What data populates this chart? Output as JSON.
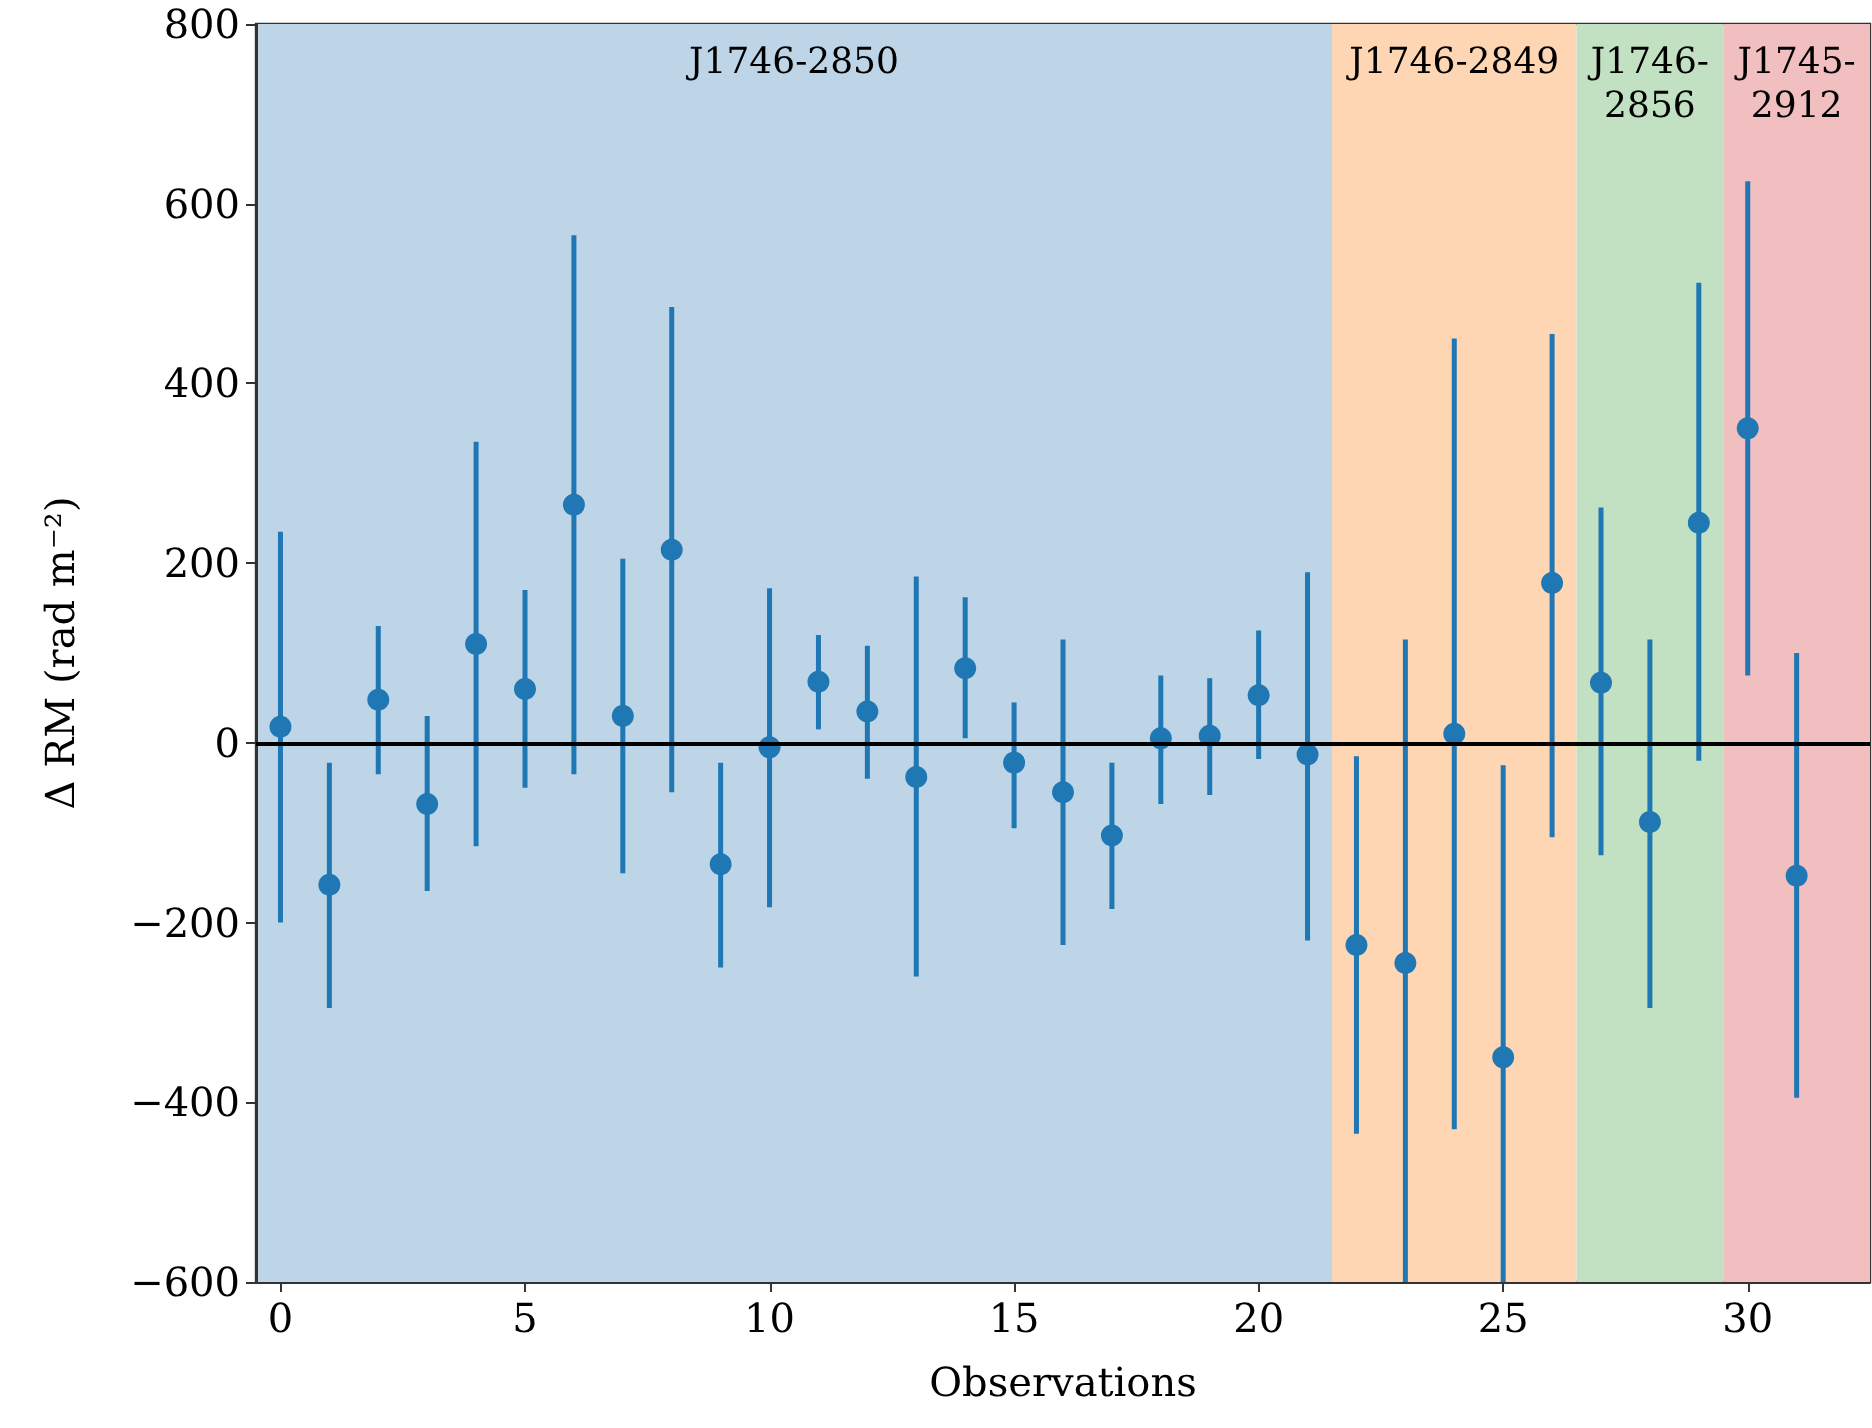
{
  "chart_data": {
    "type": "scatter",
    "xlabel": "Observations",
    "ylabel": "Δ RM (rad m⁻²)",
    "x": [
      0,
      1,
      2,
      3,
      4,
      5,
      6,
      7,
      8,
      9,
      10,
      11,
      12,
      13,
      14,
      15,
      16,
      17,
      18,
      19,
      20,
      21,
      22,
      23,
      24,
      25,
      26,
      27,
      28,
      29,
      30,
      31
    ],
    "series": [
      {
        "color": "#1f77b4",
        "values": [
          18,
          -158,
          48,
          -68,
          110,
          60,
          265,
          30,
          215,
          -135,
          -5,
          68,
          35,
          -38,
          83,
          -22,
          -55,
          -103,
          5,
          8,
          53,
          -13,
          -225,
          -245,
          10,
          -350,
          178,
          67,
          -88,
          245,
          350,
          -148
        ],
        "errors": [
          [
            -200,
            235
          ],
          [
            -295,
            -22
          ],
          [
            -35,
            130
          ],
          [
            -165,
            30
          ],
          [
            -115,
            335
          ],
          [
            -50,
            170
          ],
          [
            -35,
            565
          ],
          [
            -145,
            205
          ],
          [
            -55,
            485
          ],
          [
            -250,
            -22
          ],
          [
            -183,
            172
          ],
          [
            15,
            120
          ],
          [
            -40,
            108
          ],
          [
            -260,
            185
          ],
          [
            5,
            162
          ],
          [
            -95,
            45
          ],
          [
            -225,
            115
          ],
          [
            -185,
            -22
          ],
          [
            -68,
            75
          ],
          [
            -58,
            72
          ],
          [
            -18,
            125
          ],
          [
            -220,
            190
          ],
          [
            -435,
            -15
          ],
          [
            -600,
            115
          ],
          [
            -430,
            450
          ],
          [
            -600,
            -25
          ],
          [
            -105,
            455
          ],
          [
            -125,
            262
          ],
          [
            -295,
            115
          ],
          [
            -20,
            512
          ],
          [
            75,
            625
          ],
          [
            -395,
            100
          ]
        ]
      }
    ],
    "xlim": [
      -0.5,
      32.5
    ],
    "xticks": [
      0,
      5,
      10,
      15,
      20,
      25,
      30
    ],
    "ylim": [
      -600,
      800
    ],
    "yticks": [
      -600,
      -400,
      -200,
      0,
      200,
      400,
      600,
      800
    ],
    "bands": [
      {
        "axis": "x",
        "from": -0.5,
        "to": 21.5,
        "label": "J1746-2850",
        "color": "#bdd5e7"
      },
      {
        "axis": "x",
        "from": 21.5,
        "to": 26.5,
        "label": "J1746-2849",
        "color": "#ffd6b4"
      },
      {
        "axis": "x",
        "from": 26.5,
        "to": 29.5,
        "label": "J1746-2856",
        "color": "#c2e0c2"
      },
      {
        "axis": "x",
        "from": 29.5,
        "to": 32.5,
        "label": "J1745-2912",
        "color": "#f1bfbf"
      }
    ],
    "ref_lines": [
      {
        "axis": "y",
        "value": 0,
        "color": "#000000"
      }
    ],
    "marker": "circle",
    "grid": false
  }
}
